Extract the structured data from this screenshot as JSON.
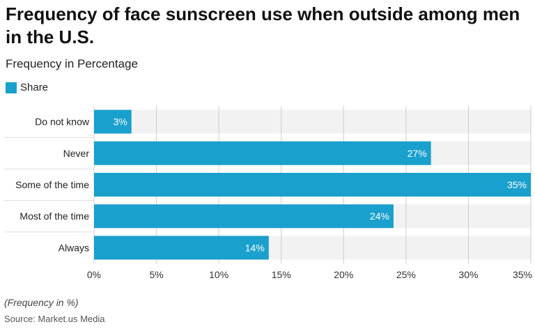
{
  "title": "Frequency of face sunscreen use when outside among men in the U.S.",
  "subtitle": "Frequency in Percentage",
  "note": "(Frequency in %)",
  "source": "Source: Market.us Media",
  "colors": {
    "bar": "#1aa0cc",
    "band": "#f2f2f2",
    "grid": "#cccccc"
  },
  "chart_data": {
    "type": "bar",
    "orientation": "horizontal",
    "categories": [
      "Do not know",
      "Never",
      "Some of the time",
      "Most of the time",
      "Always"
    ],
    "series": [
      {
        "name": "Share",
        "values": [
          3,
          27,
          35,
          24,
          14
        ]
      }
    ],
    "data_labels": [
      "3%",
      "27%",
      "35%",
      "24%",
      "14%"
    ],
    "x_ticks": [
      0,
      5,
      10,
      15,
      20,
      25,
      30,
      35
    ],
    "x_tick_labels": [
      "0%",
      "5%",
      "10%",
      "15%",
      "20%",
      "25%",
      "30%",
      "35%"
    ],
    "xlim": [
      0,
      35
    ],
    "grid": true,
    "legend_position": "top-left"
  }
}
